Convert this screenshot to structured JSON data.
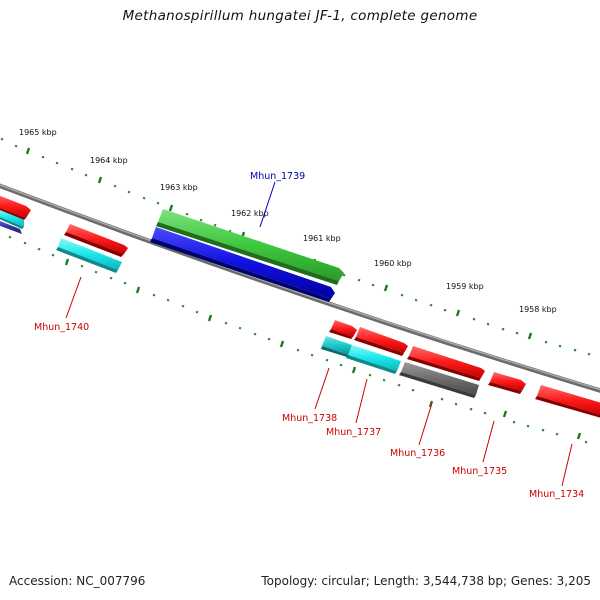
{
  "title": "Methanospirillum hungatei JF-1, complete genome",
  "footer": {
    "accession": "Accession: NC_007796",
    "topology": "Topology: circular; Length: 3,544,738 bp; Genes: 3,205"
  },
  "colors": {
    "backbone": "#808080",
    "ticks": "#1f7a1f",
    "ring_ticks": "#2b8a2b",
    "label_red": "#cc0000",
    "label_blue": "#0000aa"
  },
  "ruler": {
    "unit": "kbp",
    "labels": [
      "1965 kbp",
      "1964 kbp",
      "1963 kbp",
      "1962 kbp",
      "1961 kbp",
      "1960 kbp",
      "1959 kbp",
      "1958 kbp"
    ]
  },
  "genes": [
    {
      "name": "Mhun_1739",
      "color": "#3ec83e",
      "strand": "+",
      "labelled": true,
      "label_color": "blue"
    },
    {
      "name": "",
      "color": "#1010e0",
      "strand": "-",
      "labelled": false
    },
    {
      "name": "Mhun_1740",
      "color": "#ff1a1a",
      "strand": "+",
      "labelled": false
    },
    {
      "name": "Mhun_1740",
      "color": "#19e8ec",
      "strand": "-",
      "labelled": true,
      "label_color": "red"
    },
    {
      "name": "",
      "color": "#ff1a1a",
      "strand": "+",
      "labelled": false
    },
    {
      "name": "",
      "color": "#19e8ec",
      "strand": "-",
      "labelled": false
    },
    {
      "name": "",
      "color": "#3333aa",
      "strand": "-",
      "labelled": false
    },
    {
      "name": "Mhun_1738",
      "color": "#ff1a1a",
      "strand": "+",
      "labelled": false
    },
    {
      "name": "Mhun_1738",
      "color": "#19c8cc",
      "strand": "-",
      "labelled": true,
      "label_color": "red"
    },
    {
      "name": "Mhun_1737",
      "color": "#ff1a1a",
      "strand": "+",
      "labelled": false
    },
    {
      "name": "Mhun_1737",
      "color": "#19e8ec",
      "strand": "-",
      "labelled": true,
      "label_color": "red"
    },
    {
      "name": "Mhun_1736",
      "color": "#ff1a1a",
      "strand": "+",
      "labelled": false
    },
    {
      "name": "Mhun_1736",
      "color": "#6e6e6e",
      "strand": "-",
      "labelled": true,
      "label_color": "red"
    },
    {
      "name": "Mhun_1735",
      "color": "#ff1a1a",
      "strand": "+",
      "labelled": true,
      "label_color": "red"
    },
    {
      "name": "Mhun_1734",
      "color": "#ff1a1a",
      "strand": "+",
      "labelled": true,
      "label_color": "red"
    }
  ],
  "gene_labels": [
    "Mhun_1739",
    "Mhun_1740",
    "Mhun_1738",
    "Mhun_1737",
    "Mhun_1736",
    "Mhun_1735",
    "Mhun_1734"
  ]
}
